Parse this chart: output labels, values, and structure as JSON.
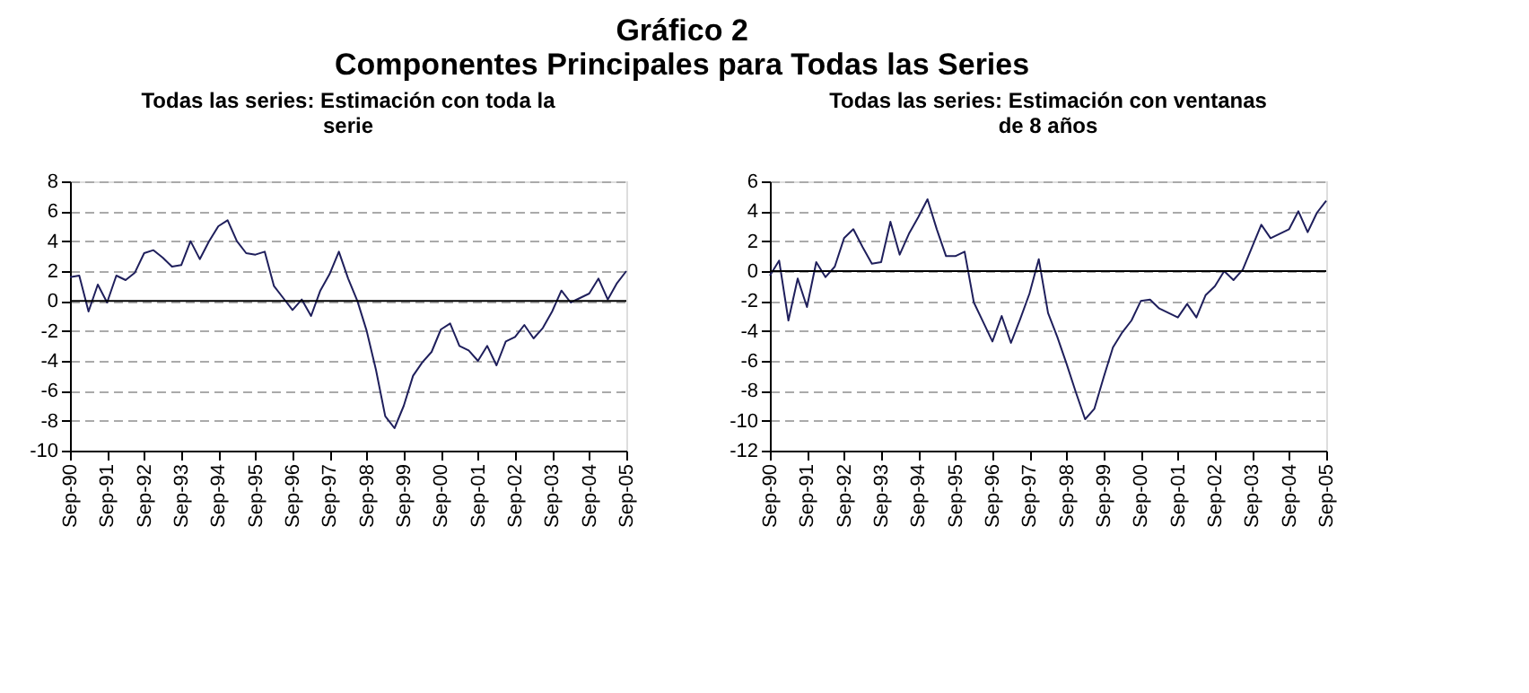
{
  "chart_data": [
    {
      "type": "line",
      "title": "Todas las series: Estimación con toda la serie",
      "annotations": [
        "Gráfico 2",
        "Componentes Principales para Todas las Series"
      ],
      "categories": [
        "Sep-90",
        null,
        null,
        null,
        "Sep-91",
        null,
        null,
        null,
        "Sep-92",
        null,
        null,
        null,
        "Sep-93",
        null,
        null,
        null,
        "Sep-94",
        null,
        null,
        null,
        "Sep-95",
        null,
        null,
        null,
        "Sep-96",
        null,
        null,
        null,
        "Sep-97",
        null,
        null,
        null,
        "Sep-98",
        null,
        null,
        null,
        "Sep-99",
        null,
        null,
        null,
        "Sep-00",
        null,
        null,
        null,
        "Sep-01",
        null,
        null,
        null,
        "Sep-02",
        null,
        null,
        null,
        "Sep-03",
        null,
        null,
        null,
        "Sep-04",
        null,
        null,
        null,
        "Sep-05"
      ],
      "series": [
        {
          "color": "#1f1f5c",
          "values": [
            1.6,
            1.7,
            -0.7,
            1.1,
            -0.1,
            1.7,
            1.4,
            1.9,
            3.2,
            3.4,
            2.9,
            2.3,
            2.4,
            4.0,
            2.8,
            4.0,
            5.0,
            5.4,
            4.0,
            3.2,
            3.1,
            3.3,
            1.0,
            0.2,
            -0.6,
            0.1,
            -1.0,
            0.7,
            1.8,
            3.3,
            1.5,
            0.0,
            -2.0,
            -4.6,
            -7.7,
            -8.5,
            -7.0,
            -5.0,
            -4.1,
            -3.4,
            -1.9,
            -1.5,
            -3.0,
            -3.3,
            -4.0,
            -3.0,
            -4.3,
            -2.7,
            -2.4,
            -1.6,
            -2.5,
            -1.8,
            -0.7,
            0.7,
            -0.1,
            0.2,
            0.5,
            1.5,
            0.1,
            1.2,
            2.0
          ]
        }
      ],
      "ylim": [
        -10,
        8
      ],
      "yticks": [
        -10,
        -8,
        -6,
        -4,
        -2,
        0,
        2,
        4,
        6,
        8
      ],
      "grid": "y",
      "line_style": "solid",
      "marker": "none",
      "ref_lines": [
        {
          "axis": "y",
          "value": 0,
          "color": "#000000"
        }
      ]
    },
    {
      "type": "line",
      "title": "Todas las series: Estimación con ventanas de 8 años",
      "categories": [
        "Sep-90",
        null,
        null,
        null,
        "Sep-91",
        null,
        null,
        null,
        "Sep-92",
        null,
        null,
        null,
        "Sep-93",
        null,
        null,
        null,
        "Sep-94",
        null,
        null,
        null,
        "Sep-95",
        null,
        null,
        null,
        "Sep-96",
        null,
        null,
        null,
        "Sep-97",
        null,
        null,
        null,
        "Sep-98",
        null,
        null,
        null,
        "Sep-99",
        null,
        null,
        null,
        "Sep-00",
        null,
        null,
        null,
        "Sep-01",
        null,
        null,
        null,
        "Sep-02",
        null,
        null,
        null,
        "Sep-03",
        null,
        null,
        null,
        "Sep-04",
        null,
        null,
        null,
        "Sep-05"
      ],
      "series": [
        {
          "color": "#1f1f5c",
          "values": [
            -0.3,
            0.7,
            -3.3,
            -0.5,
            -2.4,
            0.6,
            -0.4,
            0.3,
            2.2,
            2.8,
            1.6,
            0.5,
            0.6,
            3.3,
            1.1,
            2.5,
            3.6,
            4.8,
            2.8,
            1.0,
            1.0,
            1.3,
            -2.1,
            -3.4,
            -4.7,
            -3.0,
            -4.8,
            -3.2,
            -1.5,
            0.8,
            -2.8,
            -4.4,
            -6.2,
            -8.1,
            -9.9,
            -9.2,
            -7.1,
            -5.1,
            -4.1,
            -3.3,
            -2.0,
            -1.9,
            -2.5,
            -2.8,
            -3.1,
            -2.2,
            -3.1,
            -1.6,
            -1.0,
            0.0,
            -0.6,
            0.1,
            1.6,
            3.1,
            2.2,
            2.5,
            2.8,
            4.0,
            2.6,
            3.9,
            4.7
          ]
        }
      ],
      "ylim": [
        -12,
        6
      ],
      "yticks": [
        -12,
        -10,
        -8,
        -6,
        -4,
        -2,
        0,
        2,
        4,
        6
      ],
      "grid": "y",
      "line_style": "solid",
      "marker": "none",
      "ref_lines": [
        {
          "axis": "y",
          "value": 0,
          "color": "#000000"
        }
      ]
    }
  ]
}
